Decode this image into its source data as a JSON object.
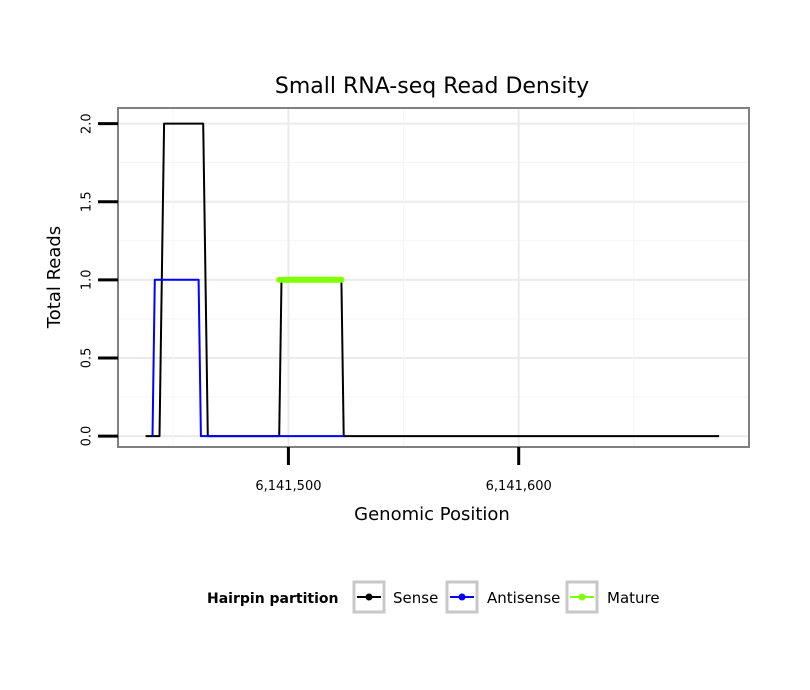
{
  "chart_data": {
    "type": "line",
    "title": "Small RNA-seq Read Density",
    "xlabel": "Genomic Position",
    "ylabel": "Total Reads",
    "xlim": [
      6141426,
      6141700
    ],
    "ylim": [
      -0.07,
      2.1
    ],
    "xticks": [
      6141500,
      6141600
    ],
    "xtick_labels": [
      "6,141,500",
      "6,141,600"
    ],
    "yticks": [
      0.0,
      0.5,
      1.0,
      1.5,
      2.0
    ],
    "ytick_labels": [
      "0.0",
      "0.5",
      "1.0",
      "1.5",
      "2.0"
    ],
    "grid": true,
    "legend": {
      "title": "Hairpin partition",
      "placement": "bottom",
      "entries": [
        "Sense",
        "Antisense",
        "Mature"
      ]
    },
    "series": [
      {
        "name": "Sense",
        "color": "#000000",
        "x": [
          6141438,
          6141444,
          6141446,
          6141463,
          6141465,
          6141496,
          6141497,
          6141523,
          6141524,
          6141687
        ],
        "y": [
          0,
          0,
          2,
          2,
          0,
          0,
          1,
          1,
          0,
          0
        ]
      },
      {
        "name": "Antisense",
        "color": "#0000ff",
        "x": [
          6141441,
          6141442,
          6141461,
          6141462,
          6141524
        ],
        "y": [
          0,
          1,
          1,
          0,
          0
        ]
      },
      {
        "name": "Mature",
        "color": "#7fff00",
        "x": [
          6141496,
          6141523
        ],
        "y": [
          1,
          1
        ]
      }
    ]
  }
}
